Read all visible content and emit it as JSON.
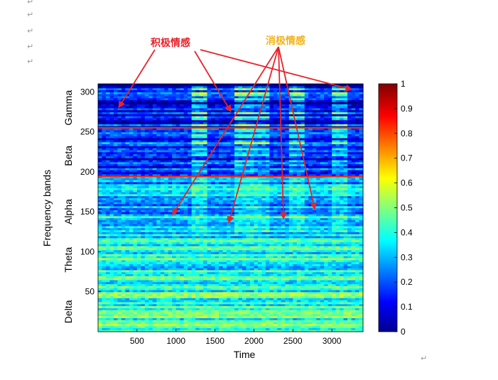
{
  "document": {
    "paragraph_mark": "↵"
  },
  "annotations": {
    "positive": {
      "text": "积极情感",
      "color": "#e8232b"
    },
    "negative": {
      "text": "消极情感",
      "color": "#f2b21a"
    }
  },
  "chart_data": {
    "type": "heatmap",
    "title": "",
    "xlabel": "Time",
    "ylabel": "Frequency bands",
    "xlim": [
      0,
      3400
    ],
    "ylim": [
      0,
      310
    ],
    "x_ticks": [
      500,
      1000,
      1500,
      2000,
      2500,
      3000
    ],
    "y_ticks": [
      50,
      100,
      150,
      200,
      250,
      300
    ],
    "band_labels": [
      {
        "label": "Gamma",
        "y": 280
      },
      {
        "label": "Beta",
        "y": 220
      },
      {
        "label": "Alpha",
        "y": 150
      },
      {
        "label": "Theta",
        "y": 90
      },
      {
        "label": "Delta",
        "y": 25
      }
    ],
    "band_boundaries": [
      255,
      194
    ],
    "colorbar": {
      "range": [
        0,
        1
      ],
      "ticks": [
        0,
        0.1,
        0.2,
        0.3,
        0.4,
        0.5,
        0.6,
        0.7,
        0.8,
        0.9,
        1
      ],
      "tick_labels": [
        "0",
        "0.1",
        "0.2",
        "0.3",
        "0.4",
        "0.5",
        "0.6",
        "0.7",
        "0.8",
        "0.9",
        "1"
      ],
      "colormap": "jet"
    },
    "band_levels": [
      {
        "band": "Delta",
        "y_range": [
          0,
          60
        ],
        "value": 0.42
      },
      {
        "band": "Theta",
        "y_range": [
          60,
          125
        ],
        "value": 0.38
      },
      {
        "band": "Alpha",
        "y_range": [
          125,
          194
        ],
        "value": 0.32
      },
      {
        "band": "Beta",
        "y_range": [
          194,
          255
        ],
        "value": 0.15
      },
      {
        "band": "Gamma",
        "y_range": [
          255,
          310
        ],
        "value": 0.12
      }
    ],
    "high_segments": [
      {
        "x_range": [
          1200,
          1380
        ],
        "value": 0.62
      },
      {
        "x_range": [
          1750,
          1980
        ],
        "value": 0.62
      },
      {
        "x_range": [
          2020,
          2200
        ],
        "value": 0.56
      },
      {
        "x_range": [
          2460,
          2650
        ],
        "value": 0.58
      },
      {
        "x_range": [
          3000,
          3200
        ],
        "value": 0.58
      }
    ],
    "arrow_targets": {
      "positive": [
        {
          "x": 270,
          "y": 281
        },
        {
          "x": 1700,
          "y": 276
        },
        {
          "x": 3250,
          "y": 303
        }
      ],
      "negative": [
        {
          "x": 960,
          "y": 147
        },
        {
          "x": 1680,
          "y": 137
        },
        {
          "x": 2380,
          "y": 142
        },
        {
          "x": 2780,
          "y": 154
        }
      ]
    }
  }
}
